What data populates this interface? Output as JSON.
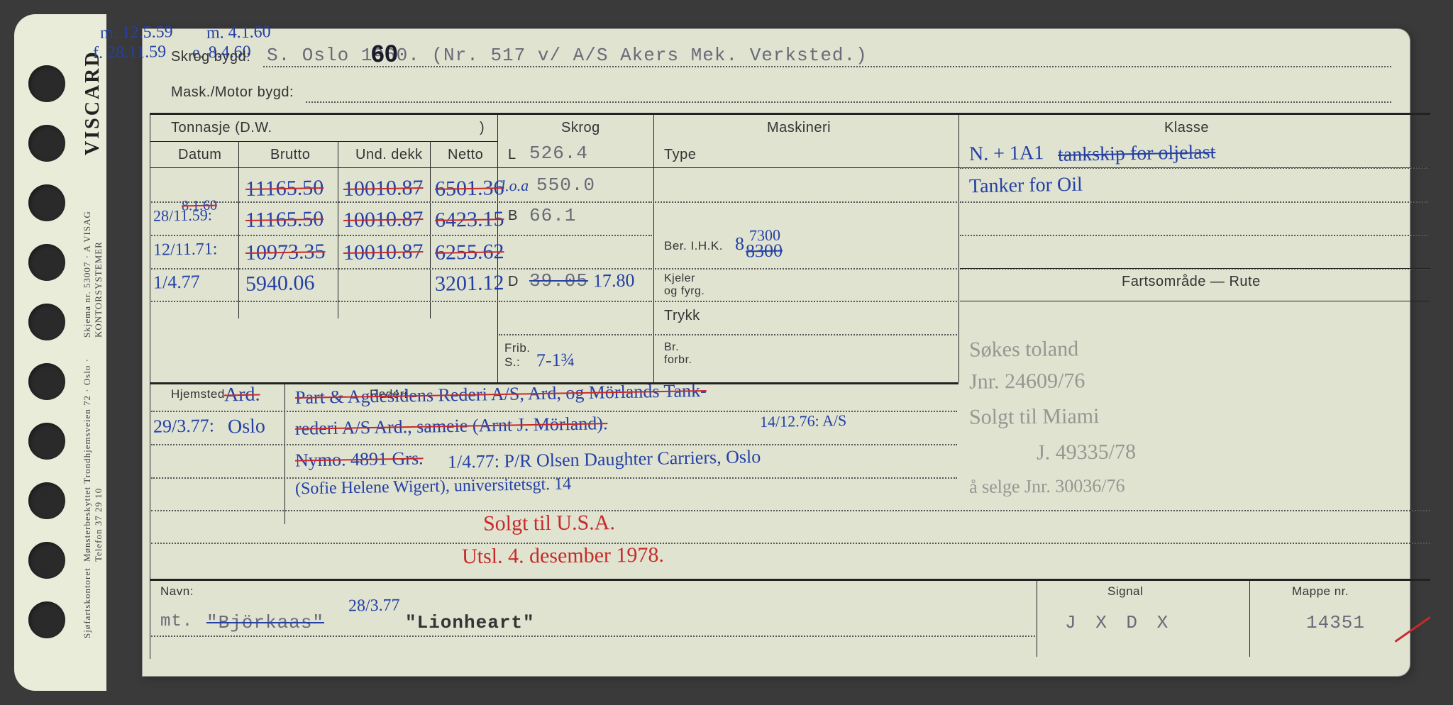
{
  "meta": {
    "brand": "VISCARD",
    "side_text_1": "Skjema nr. 53007 · A VISAG KONTORSYSTEMER",
    "side_text_2": "Mønsterbeskyttet   Trondhjemsveien 72 · Oslo · Telefon 37 29 10",
    "side_text_3": "Sjøfartskontoret"
  },
  "top_notes": {
    "n1": "m. 12.5.59",
    "n2": "m. 4.1.60",
    "n3": "f. 28.11.59",
    "n4": "e. 8.4.60"
  },
  "header": {
    "skrog_label": "Skrog bygd:",
    "skrog_val": "S. Oslo 1960. (Nr. 517 v/ A/S Akers Mek. Verksted.)",
    "skrog_overwrite": "60",
    "mask_label": "Mask./Motor bygd:"
  },
  "cols": {
    "tonnasje": "Tonnasje (D.W.",
    "tonnasje_close": ")",
    "datum": "Datum",
    "brutto": "Brutto",
    "und_dekk": "Und. dekk",
    "netto": "Netto",
    "skrog": "Skrog",
    "maskineri": "Maskineri",
    "klasse": "Klasse"
  },
  "tonnage": {
    "r1": {
      "datum": "",
      "brutto": "11165.50",
      "und": "10010.87",
      "netto": "6501.36"
    },
    "r2": {
      "datum_a": "8.1.60",
      "datum_b": "28/11.59:",
      "brutto": "11165.50",
      "und": "10010.87",
      "netto": "6423.15"
    },
    "r3": {
      "datum": "12/11.71:",
      "brutto": "10973.35",
      "und": "10010.87",
      "netto": "6255.62"
    },
    "r4": {
      "datum": "1/4.77",
      "brutto": "5940.06",
      "und": "",
      "netto": "3201.12"
    }
  },
  "skrog": {
    "L_lbl": "L",
    "L": "526.4",
    "loa_lbl": "l.o.a",
    "loa": "550.0",
    "B_lbl": "B",
    "B": "66.1",
    "D_lbl": "D",
    "D_struck": "39.05",
    "D": "17.80",
    "frib_lbl": "Frib.\nS.:",
    "frib": "7-1¾"
  },
  "mask": {
    "type_lbl": "Type",
    "ber_lbl": "Ber. I.H.K.",
    "ber_over": "8",
    "ber_val": "7300",
    "ber_struck": "8300",
    "kjeler_lbl": "Kjeler\nog fyrg.",
    "trykk_lbl": "Trykk",
    "br_lbl": "Br.\nforbr."
  },
  "klasse": {
    "line1a": "N. + 1A1",
    "line1b": "tankskip for oljelast",
    "line2": "Tanker for Oil",
    "farts_lbl": "Fartsområde — Rute",
    "pencil1": "Søkes toland",
    "pencil2": "Jnr. 24609/76",
    "pencil3": "Solgt til Miami",
    "pencil4": "J. 49335/78",
    "pencil5": "å selge Jnr. 30036/76"
  },
  "lower": {
    "hjemsted_lbl": "Hjemsted",
    "rederi_lbl": "Rederi",
    "hj_struck": "Ard.",
    "hj_date": "29/3.77:",
    "hj_val": "Oslo",
    "rederi_l1": "Part & Agdesidens Rederi A/S, Ard, og Mörlands Tank-",
    "rederi_l2": "rederi A/S Ard., sameie (Arnt J. Mörland).",
    "rederi_l2_date": "14/12.76: A/S",
    "rederi_l3a": "Nymo. 4891 Grs.",
    "rederi_l3b": "1/4.77: P/R Olsen Daughter Carriers, Oslo",
    "rederi_l4": "(Sofie Helene Wigert), universitetsgt. 14",
    "red_note1": "Solgt til U.S.A.",
    "red_note2": "Utsl. 4. desember 1978."
  },
  "footer": {
    "navn_lbl": "Navn:",
    "navn_struck": "\"Björkaas\"",
    "navn_prefix": "mt.",
    "navn_date": "28/3.77",
    "navn_val": "\"Lionheart\"",
    "signal_lbl": "Signal",
    "signal": "J X D X",
    "mappe_lbl": "Mappe nr.",
    "mappe": "14351"
  },
  "colors": {
    "card_bg": "#dfe3d0",
    "ink_blue": "#2540a5",
    "ink_red": "#c82a2a",
    "typed": "#6a6a78",
    "pencil": "#777",
    "rule": "#222"
  },
  "holes": [
    72,
    156,
    240,
    324,
    408,
    492,
    576,
    660,
    744,
    828
  ]
}
